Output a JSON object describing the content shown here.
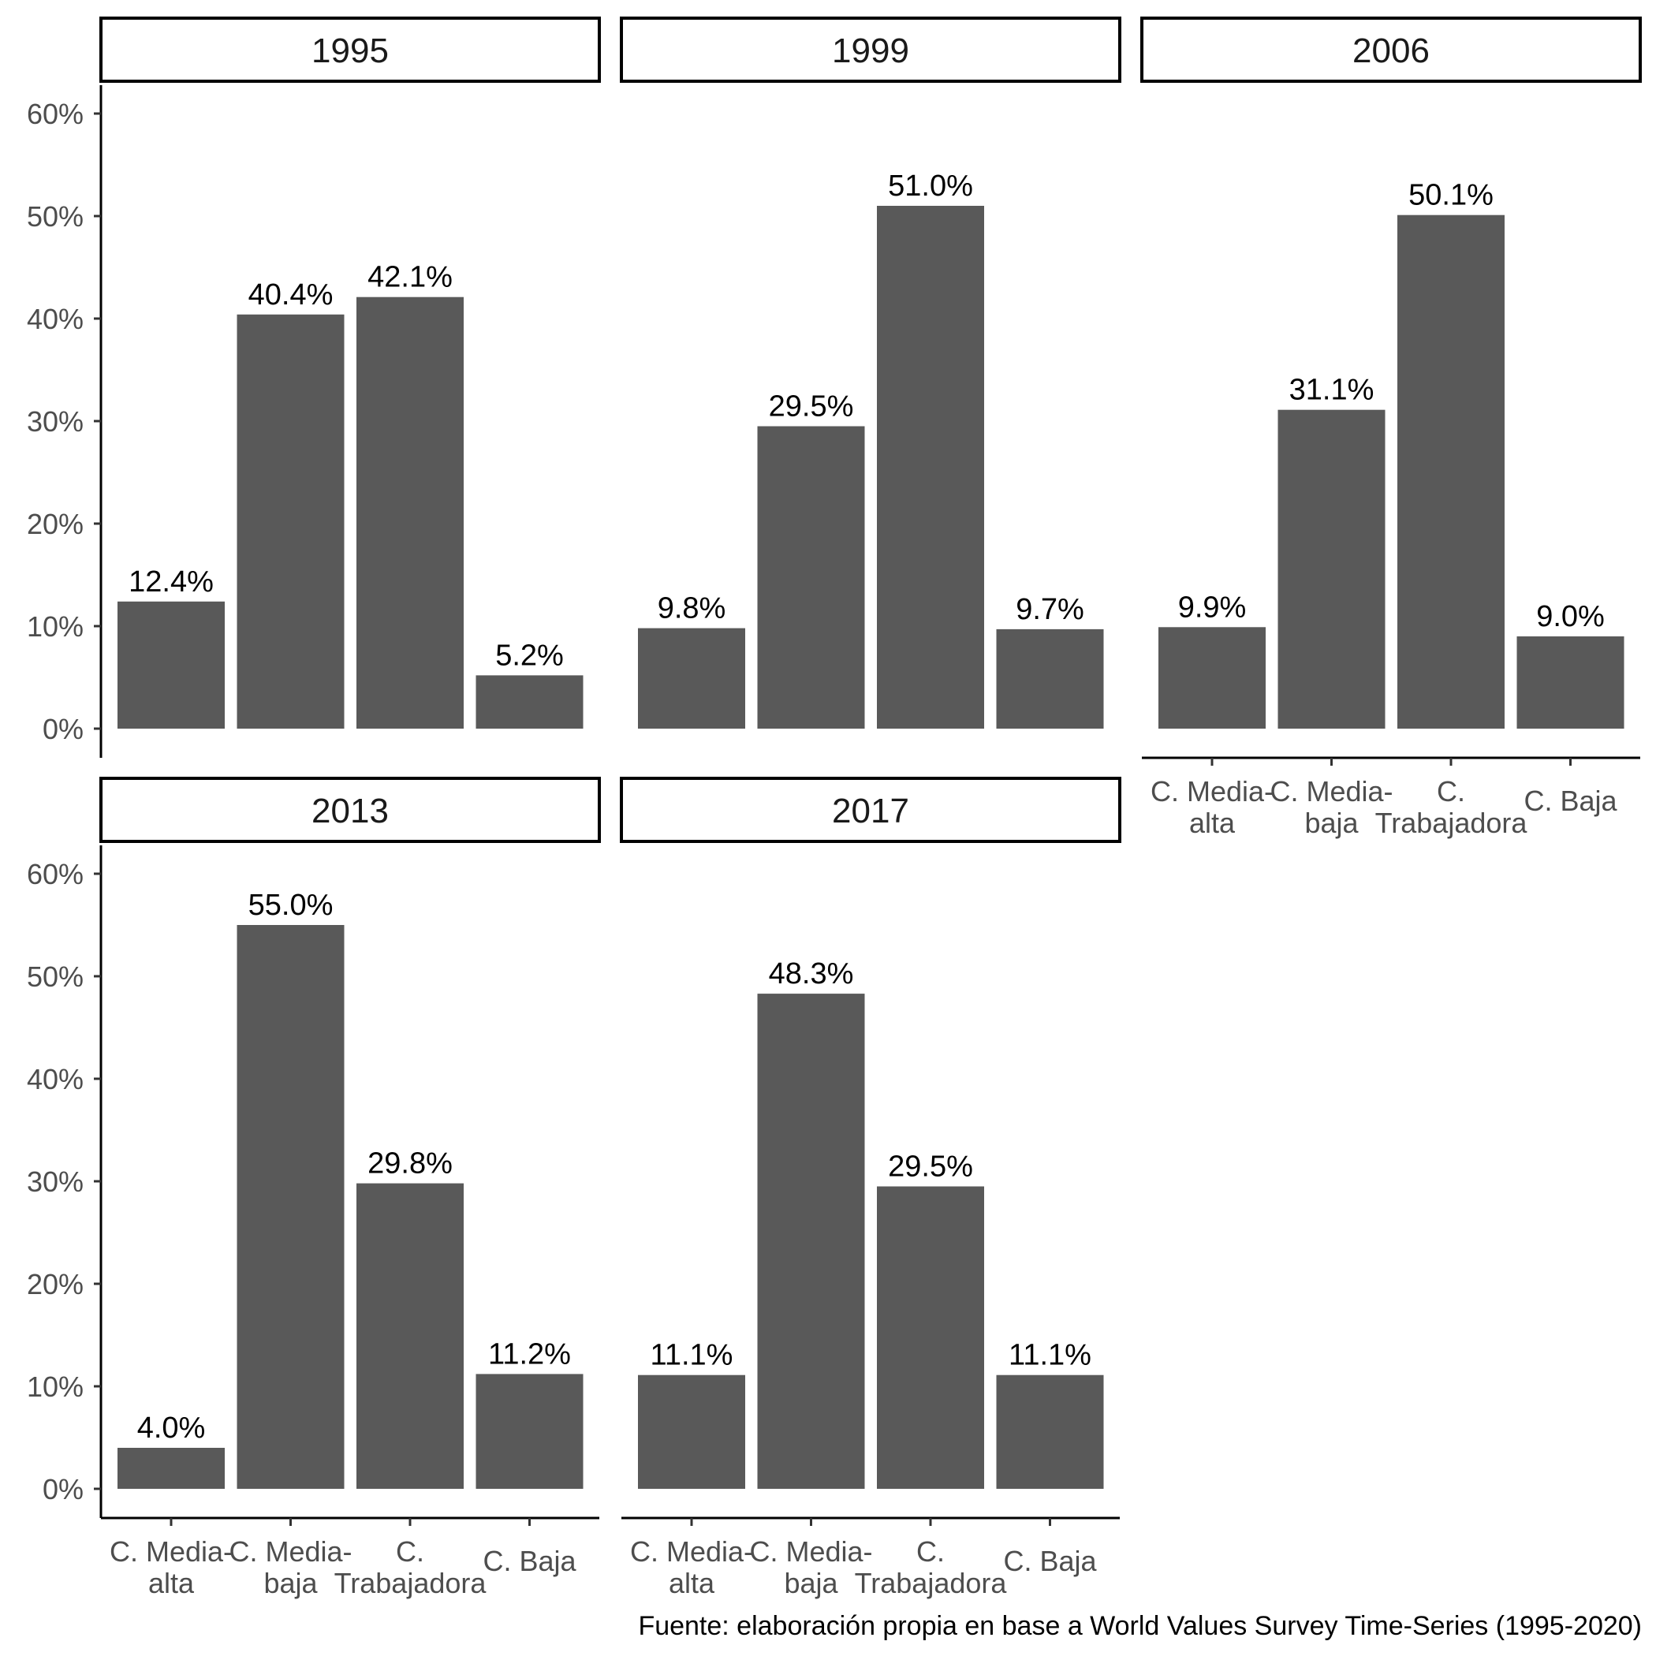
{
  "chart_data": {
    "type": "bar",
    "facet_variable": "year",
    "categories": [
      [
        "C. Media-",
        "alta"
      ],
      [
        "C. Media-",
        "baja"
      ],
      [
        "C.",
        "Trabajadora"
      ],
      [
        "C. Baja"
      ]
    ],
    "ylim": [
      0,
      0.62
    ],
    "yticks": [
      0,
      0.1,
      0.2,
      0.3,
      0.4,
      0.5,
      0.6
    ],
    "ytick_labels": [
      "0%",
      "10%",
      "20%",
      "30%",
      "40%",
      "50%",
      "60%"
    ],
    "grid": false,
    "bar_color": "#595959",
    "panels": [
      {
        "title": "1995",
        "values": [
          0.124,
          0.404,
          0.421,
          0.052
        ],
        "labels": [
          "12.4%",
          "40.4%",
          "42.1%",
          "5.2%"
        ]
      },
      {
        "title": "1999",
        "values": [
          0.098,
          0.295,
          0.51,
          0.097
        ],
        "labels": [
          "9.8%",
          "29.5%",
          "51.0%",
          "9.7%"
        ]
      },
      {
        "title": "2006",
        "values": [
          0.099,
          0.311,
          0.501,
          0.09
        ],
        "labels": [
          "9.9%",
          "31.1%",
          "50.1%",
          "9.0%"
        ]
      },
      {
        "title": "2013",
        "values": [
          0.04,
          0.55,
          0.298,
          0.112
        ],
        "labels": [
          "4.0%",
          "55.0%",
          "29.8%",
          "11.2%"
        ]
      },
      {
        "title": "2017",
        "values": [
          0.111,
          0.483,
          0.295,
          0.111
        ],
        "labels": [
          "11.1%",
          "48.3%",
          "29.5%",
          "11.1%"
        ]
      }
    ],
    "caption": "Fuente: elaboración propia en base a World Values Survey Time-Series (1995-2020)"
  }
}
